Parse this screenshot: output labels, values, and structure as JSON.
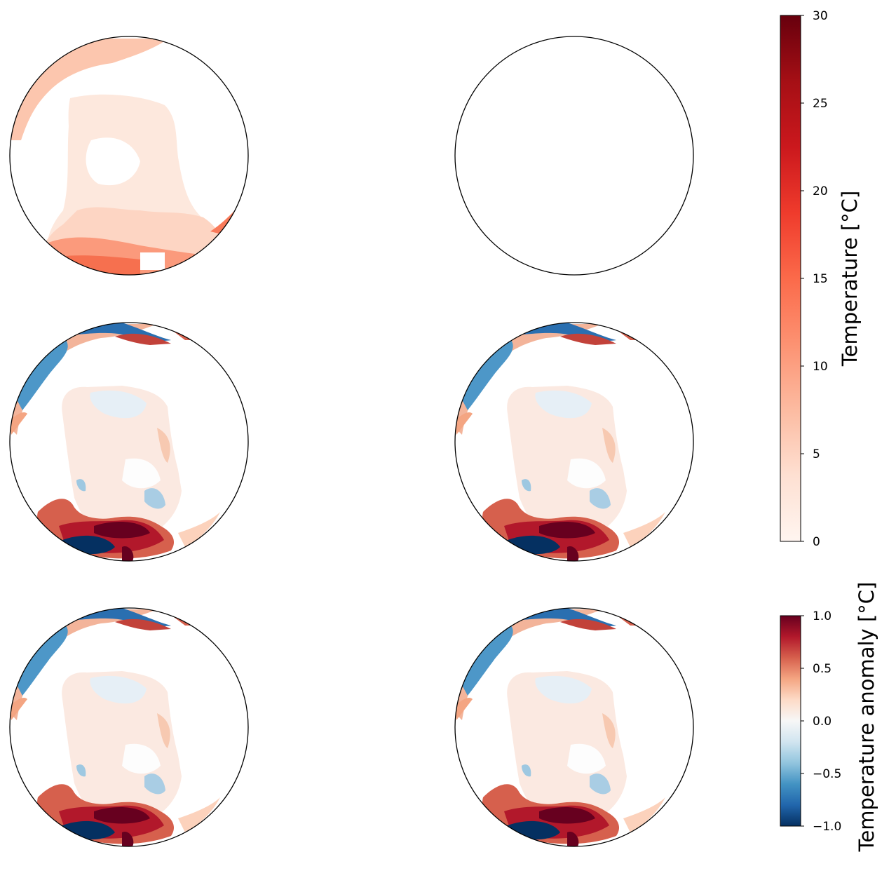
{
  "chart_data": {
    "type": "heatmap",
    "projection": "orthographic polar maps",
    "layout": "3 rows x 2 columns of circular map panels",
    "panels": [
      {
        "id": "r1c1",
        "field": "temperature",
        "content": "sea surface temperature, mostly 0-10 °C"
      },
      {
        "id": "r1c2",
        "field": "empty",
        "content": "blank panel"
      },
      {
        "id": "r2c1",
        "field": "anomaly",
        "content": "temperature anomaly"
      },
      {
        "id": "r2c2",
        "field": "anomaly",
        "content": "temperature anomaly"
      },
      {
        "id": "r3c1",
        "field": "anomaly",
        "content": "temperature anomaly"
      },
      {
        "id": "r3c2",
        "field": "anomaly",
        "content": "temperature anomaly"
      }
    ],
    "colorbars": [
      {
        "label": "Temperature [°C]",
        "cmap": "Reds",
        "range": [
          0,
          30
        ],
        "ticks": [
          0,
          5,
          10,
          15,
          20,
          25,
          30
        ],
        "tick_labels": [
          "0",
          "5",
          "10",
          "15",
          "20",
          "25",
          "30"
        ],
        "colors": [
          "#fff5f0",
          "#fee0d2",
          "#fcbba1",
          "#fc9272",
          "#fb6a4a",
          "#ef3b2c",
          "#cb181d",
          "#a50f15",
          "#67000d"
        ]
      },
      {
        "label": "Temperature anomaly [°C]",
        "cmap": "RdBu_r",
        "range": [
          -1.0,
          1.0
        ],
        "ticks": [
          -1.0,
          -0.5,
          0.0,
          0.5,
          1.0
        ],
        "tick_labels": [
          "−1.0",
          "−0.5",
          "0.0",
          "0.5",
          "1.0"
        ],
        "colors": [
          "#053061",
          "#2166ac",
          "#4393c3",
          "#92c5de",
          "#d1e5f0",
          "#f7f7f7",
          "#fddbc7",
          "#f4a582",
          "#d6604d",
          "#b2182b",
          "#67001f"
        ]
      }
    ]
  }
}
